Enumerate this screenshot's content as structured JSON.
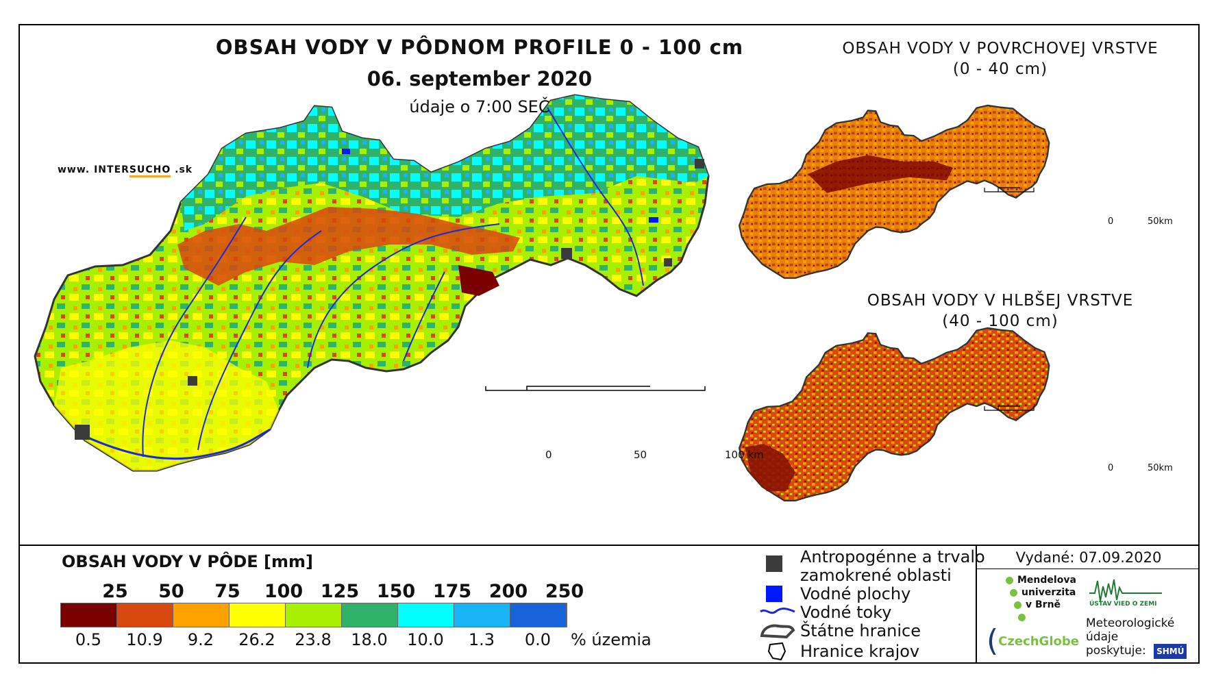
{
  "title": "OBSAH VODY V PÔDNOM PROFILE 0 - 100 cm",
  "date": "06. september 2020",
  "time_note": "údaje o 7:00 SEČ",
  "website": {
    "prefix": "www. INTER",
    "highlight": "SUCHO",
    "suffix": " .sk"
  },
  "main_scale": {
    "labels": [
      "0",
      "50",
      "100 km"
    ]
  },
  "inset_top": {
    "title_line1": "OBSAH VODY V POVRCHOVEJ VRSTVE",
    "title_line2": "(0 - 40 cm)",
    "scale": [
      "0",
      "50km"
    ]
  },
  "inset_bottom": {
    "title_line1": "OBSAH VODY V HLBŠEJ VRSTVE",
    "title_line2": "(40 - 100 cm)",
    "scale": [
      "0",
      "50km"
    ]
  },
  "legend": {
    "title": "OBSAH VODY V PÔDE [mm]",
    "breaks": [
      "25",
      "50",
      "75",
      "100",
      "125",
      "150",
      "175",
      "200",
      "250"
    ],
    "colors": [
      "#7a0000",
      "#d9480f",
      "#ffa200",
      "#ffff00",
      "#a8f000",
      "#2fb36b",
      "#00ffff",
      "#19b4f5",
      "#1763d9"
    ],
    "percent": [
      "0.5",
      "10.9",
      "9.2",
      "26.2",
      "23.8",
      "18.0",
      "10.0",
      "1.3",
      "0.0"
    ],
    "percent_label": "% územia"
  },
  "symbols": {
    "urban_line1": "Antropogénne a trvalo",
    "urban_line2": "zamokrené oblasti",
    "water": "Vodné plochy",
    "rivers": "Vodné toky",
    "border": "Štátne hranice",
    "regions": "Hranice krajov"
  },
  "issued": "Vydané: 07.09.2020",
  "logos": {
    "mendel_line1": "Mendelova",
    "mendel_line2": "univerzita",
    "mendel_line3": "v Brně",
    "czechglobe": "CzechGlobe",
    "uvz": "ÚSTAV VIED O ZEMI",
    "meteo_line1": "Meteorologické",
    "meteo_line2": "údaje",
    "meteo_line3": "poskytuje:",
    "shmu": "SHMÚ"
  }
}
